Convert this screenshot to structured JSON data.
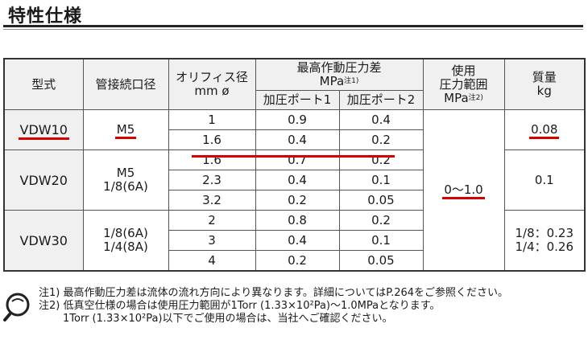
{
  "title": "特性仕様",
  "headers": {
    "model": "型式",
    "port": "管接続口径",
    "orifice_l1": "オリフィス径",
    "orifice_l2": "mm ø",
    "max_diff_l1": "最高作動圧力差",
    "max_diff_l2": "MPa",
    "max_diff_note": "注1)",
    "port1": "加圧ポート1",
    "port2": "加圧ポート2",
    "range_l1": "使用",
    "range_l2": "圧力範囲",
    "range_l3": "MPa",
    "range_note": "注2)",
    "mass_l1": "質量",
    "mass_l2": "kg"
  },
  "groups": [
    {
      "model": "VDW10",
      "port_lines": [
        "M5"
      ],
      "rows": [
        {
          "orifice": "1",
          "p1": "0.9",
          "p2": "0.4"
        },
        {
          "orifice": "1.6",
          "p1": "0.4",
          "p2": "0.2"
        }
      ],
      "mass_lines": [
        "0.08"
      ]
    },
    {
      "model": "VDW20",
      "port_lines": [
        "M5",
        "1/8(6A)"
      ],
      "rows": [
        {
          "orifice": "1.6",
          "p1": "0.7",
          "p2": "0.2"
        },
        {
          "orifice": "2.3",
          "p1": "0.4",
          "p2": "0.1"
        },
        {
          "orifice": "3.2",
          "p1": "0.2",
          "p2": "0.05"
        }
      ],
      "mass_lines": [
        "0.1"
      ]
    },
    {
      "model": "VDW30",
      "port_lines": [
        "1/8(6A)",
        "1/4(8A)"
      ],
      "rows": [
        {
          "orifice": "2",
          "p1": "0.8",
          "p2": "0.2"
        },
        {
          "orifice": "3",
          "p1": "0.4",
          "p2": "0.1"
        },
        {
          "orifice": "4",
          "p1": "0.2",
          "p2": "0.05"
        }
      ],
      "mass_lines": [
        "1/8：0.23",
        "1/4：0.26"
      ]
    }
  ],
  "pressure_range": "0〜1.0",
  "notes": [
    "注1) 最高作動圧力差は流体の流れ方向により異なります。詳細についてはP.264をご参照ください。",
    "注2) 低真空仕様の場合は使用圧力範囲が1Torr (1.33×10²Pa)〜1.0MPaとなります。",
    "1Torr (1.33×10²Pa)以下でご使用の場合は、当社へご確認ください。"
  ],
  "colors": {
    "highlight": "#d40000",
    "header_bg": "#f0f0f0"
  },
  "icons": {
    "note": "magnifier-note-icon"
  }
}
